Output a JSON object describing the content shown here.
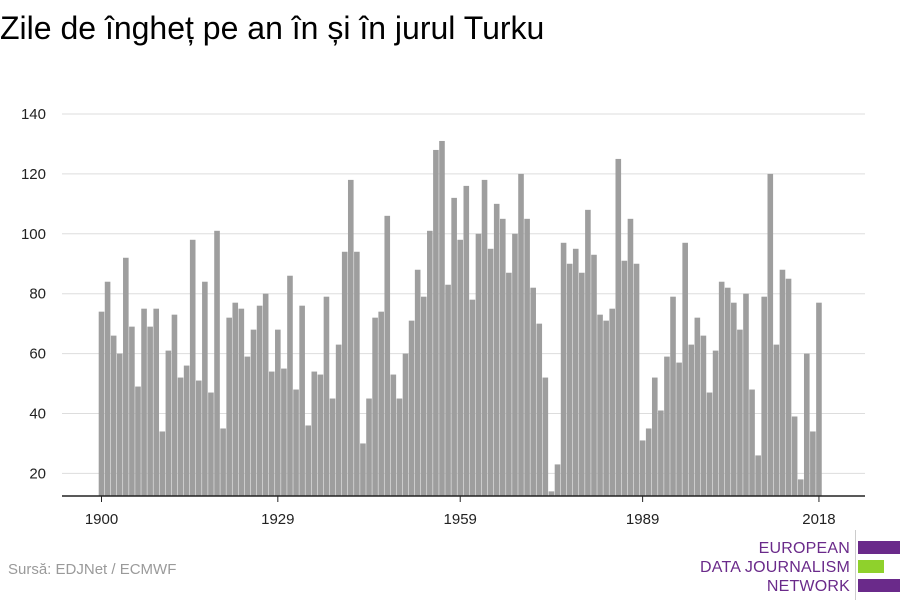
{
  "title": "Zile de îngheț pe an în și în jurul Turku",
  "source": "Sursă: EDJNet / ECMWF",
  "logo": {
    "lines": [
      "EUROPEAN",
      "DATA JOURNALISM",
      "NETWORK"
    ],
    "text_color": "#6a2a8a",
    "bar_colors": [
      "#6a2a8a",
      "#8fd12c",
      "#6a2a8a"
    ]
  },
  "colors": {
    "bar": "#9e9e9e",
    "grid": "#dddddd",
    "axis": "#222222"
  },
  "chart_data": {
    "type": "bar",
    "title": "Zile de îngheț pe an în și în jurul Turku",
    "xlabel": "",
    "ylabel": "",
    "x": [
      1900,
      1901,
      1902,
      1903,
      1904,
      1905,
      1906,
      1907,
      1908,
      1909,
      1910,
      1911,
      1912,
      1913,
      1914,
      1915,
      1916,
      1917,
      1918,
      1919,
      1920,
      1921,
      1922,
      1923,
      1924,
      1925,
      1926,
      1927,
      1928,
      1929,
      1930,
      1931,
      1932,
      1933,
      1934,
      1935,
      1936,
      1937,
      1938,
      1939,
      1940,
      1941,
      1942,
      1943,
      1944,
      1945,
      1946,
      1947,
      1948,
      1949,
      1950,
      1951,
      1952,
      1953,
      1954,
      1955,
      1956,
      1957,
      1958,
      1959,
      1960,
      1961,
      1962,
      1963,
      1964,
      1965,
      1966,
      1967,
      1968,
      1969,
      1970,
      1971,
      1972,
      1973,
      1974,
      1975,
      1976,
      1977,
      1978,
      1979,
      1980,
      1981,
      1982,
      1983,
      1984,
      1985,
      1986,
      1987,
      1988,
      1989,
      1990,
      1991,
      1992,
      1993,
      1994,
      1995,
      1996,
      1997,
      1998,
      1999,
      2000,
      2001,
      2002,
      2003,
      2004,
      2005,
      2006,
      2007,
      2008,
      2009,
      2010,
      2011,
      2012,
      2013,
      2014,
      2015,
      2016,
      2017,
      2018
    ],
    "values": [
      74,
      84,
      66,
      60,
      92,
      69,
      49,
      75,
      69,
      75,
      34,
      61,
      73,
      52,
      56,
      98,
      51,
      84,
      47,
      101,
      35,
      72,
      77,
      75,
      59,
      68,
      76,
      80,
      54,
      68,
      55,
      86,
      48,
      76,
      36,
      54,
      53,
      79,
      45,
      63,
      94,
      118,
      94,
      30,
      45,
      72,
      74,
      106,
      53,
      45,
      60,
      71,
      88,
      79,
      101,
      128,
      131,
      83,
      112,
      98,
      116,
      78,
      100,
      118,
      95,
      110,
      105,
      87,
      100,
      120,
      105,
      82,
      70,
      52,
      14,
      23,
      97,
      90,
      95,
      87,
      108,
      93,
      73,
      71,
      75,
      125,
      91,
      105,
      90,
      31,
      35,
      52,
      41,
      59,
      79,
      57,
      97,
      63,
      72,
      66,
      47,
      61,
      84,
      82,
      77,
      68,
      80,
      48,
      26,
      79,
      120,
      63,
      88,
      85,
      39,
      18,
      60,
      34,
      77
    ],
    "xticks": [
      1900,
      1929,
      1959,
      1989,
      2018
    ],
    "yticks": [
      20,
      40,
      60,
      80,
      100,
      120,
      140
    ],
    "ylim": [
      12,
      140
    ],
    "xlim": [
      1900,
      2018
    ],
    "grid": true,
    "legend": "none"
  }
}
